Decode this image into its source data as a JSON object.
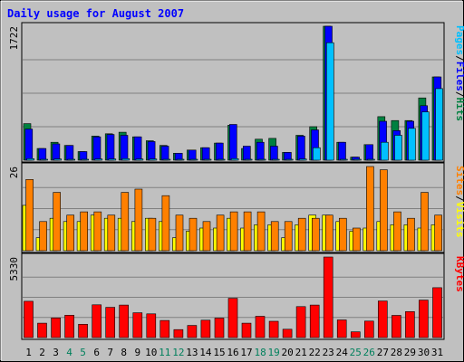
{
  "chart_data": {
    "type": "bar",
    "title": "Daily usage for August 2007",
    "categories": [
      "1",
      "2",
      "3",
      "4",
      "5",
      "6",
      "7",
      "8",
      "9",
      "10",
      "11",
      "12",
      "13",
      "14",
      "15",
      "16",
      "17",
      "18",
      "19",
      "20",
      "21",
      "22",
      "23",
      "24",
      "25",
      "26",
      "27",
      "28",
      "29",
      "30",
      "31"
    ],
    "weekend_days": [
      "4",
      "5",
      "11",
      "12",
      "18",
      "19",
      "25",
      "26"
    ],
    "colors": {
      "title": "#0000ff",
      "background": "#c0c0c0",
      "grid": "#808080",
      "hits": "#008040",
      "files": "#0000ff",
      "pages": "#00c0ff",
      "visits": "#ffff00",
      "sites": "#ff8000",
      "kbytes": "#ff0000",
      "weekday_label": "#000000",
      "weekend_label": "#00805c"
    },
    "panels": [
      {
        "id": "hits-files-pages",
        "ymax_label": "1722",
        "ymax": 1722,
        "legend": [
          {
            "text": "Pages",
            "color": "#00c0ff"
          },
          {
            "text": "/",
            "color": "#000000"
          },
          {
            "text": "Files",
            "color": "#0000ff"
          },
          {
            "text": "/",
            "color": "#000000"
          },
          {
            "text": "Hits",
            "color": "#008040"
          }
        ],
        "series": [
          {
            "name": "Hits",
            "color": "#008040",
            "values": [
              470,
              150,
              230,
              190,
              110,
              310,
              340,
              360,
              300,
              250,
              190,
              90,
              130,
              160,
              220,
              450,
              150,
              270,
              280,
              100,
              320,
              430,
              1722,
              230,
              40,
              200,
              560,
              510,
              510,
              800,
              1070
            ]
          },
          {
            "name": "Files",
            "color": "#0000ff",
            "values": [
              400,
              150,
              210,
              190,
              110,
              300,
              330,
              320,
              300,
              240,
              180,
              90,
              130,
              160,
              220,
              460,
              180,
              230,
              180,
              100,
              310,
              390,
              1722,
              230,
              40,
              200,
              500,
              380,
              500,
              700,
              1070
            ]
          },
          {
            "name": "Pages",
            "color": "#00c0ff",
            "values": [
              20,
              10,
              15,
              10,
              5,
              15,
              15,
              20,
              15,
              15,
              10,
              5,
              10,
              10,
              10,
              20,
              10,
              10,
              10,
              5,
              15,
              160,
              1510,
              10,
              5,
              10,
              230,
              320,
              410,
              620,
              920
            ]
          }
        ]
      },
      {
        "id": "visits-sites",
        "ymax_label": "26",
        "ymax": 26,
        "legend": [
          {
            "text": "Sites",
            "color": "#ff8000"
          },
          {
            "text": "/",
            "color": "#000000"
          },
          {
            "text": "Visits",
            "color": "#ffff00"
          }
        ],
        "series": [
          {
            "name": "Visits",
            "color": "#ffff00",
            "values": [
              14,
              4,
              10,
              9,
              9,
              11,
              10,
              10,
              9,
              10,
              9,
              4,
              6,
              7,
              7,
              10,
              7,
              8,
              8,
              4,
              8,
              11,
              11,
              9,
              6,
              7,
              9,
              8,
              8,
              7,
              8
            ]
          },
          {
            "name": "Sites",
            "color": "#ff8000",
            "values": [
              22,
              9,
              18,
              11,
              12,
              12,
              11,
              18,
              19,
              10,
              17,
              11,
              10,
              9,
              11,
              12,
              12,
              12,
              9,
              9,
              10,
              10,
              11,
              10,
              7,
              26,
              25,
              12,
              10,
              18,
              11
            ]
          }
        ]
      },
      {
        "id": "kbytes",
        "ymax_label": "5330",
        "ymax": 5330,
        "legend": [
          {
            "text": "KBytes",
            "color": "#ff0000"
          }
        ],
        "series": [
          {
            "name": "KBytes",
            "color": "#ff0000",
            "values": [
              2400,
              950,
              1300,
              1480,
              880,
              2170,
              2000,
              2150,
              1640,
              1570,
              1130,
              530,
              800,
              1150,
              1290,
              2600,
              950,
              1410,
              1080,
              550,
              2050,
              2150,
              5330,
              1170,
              380,
              1090,
              2420,
              1470,
              1720,
              2480,
              3300
            ]
          }
        ]
      }
    ]
  }
}
